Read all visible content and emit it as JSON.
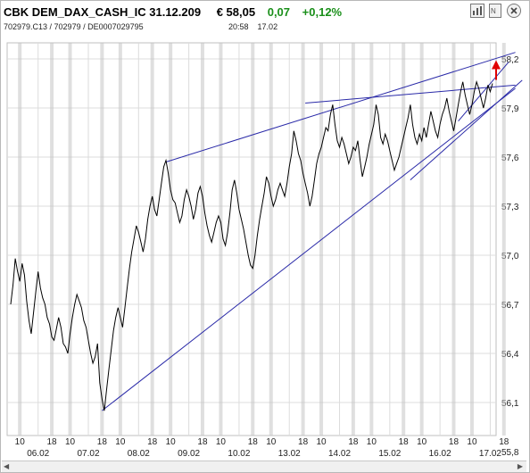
{
  "header": {
    "instrument": "CBK DEM_DAX_CASH_IC 31.12.209",
    "price": "€ 58,05",
    "change": "0,07",
    "change_pct": "+0,12%",
    "codes": "702979.C13  /  702979  /  DE0007029795",
    "time": "20:58",
    "date": "17.02"
  },
  "colors": {
    "price_line": "#000000",
    "trendline": "#2a2aa8",
    "grid": "#dcdcdc",
    "session_line": "#c4c4c4",
    "arrow": "#e00000",
    "positive": "#1a8f1a"
  },
  "icons": [
    "chart-settings-icon",
    "close-icon"
  ],
  "chart_data": {
    "type": "line",
    "y_ticks": [
      "58,2",
      "57,9",
      "57,6",
      "57,3",
      "57,0",
      "56,7",
      "56,4",
      "56,1",
      "55,8"
    ],
    "ylim": [
      55.8,
      58.2
    ],
    "x_labels": [
      {
        "text": "10",
        "i": 4
      },
      {
        "text": "06.02",
        "i": 12
      },
      {
        "text": "18",
        "i": 18
      },
      {
        "text": "10",
        "i": 26
      },
      {
        "text": "07.02",
        "i": 34
      },
      {
        "text": "18",
        "i": 40
      },
      {
        "text": "10",
        "i": 48
      },
      {
        "text": "08.02",
        "i": 56
      },
      {
        "text": "18",
        "i": 62
      },
      {
        "text": "10",
        "i": 70
      },
      {
        "text": "09.02",
        "i": 78
      },
      {
        "text": "18",
        "i": 84
      },
      {
        "text": "10",
        "i": 92
      },
      {
        "text": "10.02",
        "i": 100
      },
      {
        "text": "18",
        "i": 106
      },
      {
        "text": "10",
        "i": 114
      },
      {
        "text": "13.02",
        "i": 122
      },
      {
        "text": "18",
        "i": 128
      },
      {
        "text": "10",
        "i": 136
      },
      {
        "text": "14.02",
        "i": 144
      },
      {
        "text": "18",
        "i": 150
      },
      {
        "text": "10",
        "i": 158
      },
      {
        "text": "15.02",
        "i": 166
      },
      {
        "text": "18",
        "i": 172
      },
      {
        "text": "10",
        "i": 180
      },
      {
        "text": "16.02",
        "i": 188
      },
      {
        "text": "18",
        "i": 194
      },
      {
        "text": "10",
        "i": 202
      },
      {
        "text": "17.02",
        "i": 210
      },
      {
        "text": "18",
        "i": 216
      }
    ],
    "price_series": [
      56.7,
      56.82,
      56.98,
      56.9,
      56.84,
      56.95,
      56.88,
      56.72,
      56.6,
      56.52,
      56.65,
      56.78,
      56.9,
      56.8,
      56.74,
      56.7,
      56.62,
      56.58,
      56.5,
      56.48,
      56.55,
      56.62,
      56.56,
      56.46,
      56.44,
      56.4,
      56.52,
      56.62,
      56.7,
      56.76,
      56.72,
      56.68,
      56.6,
      56.56,
      56.48,
      56.4,
      56.34,
      56.38,
      56.46,
      56.22,
      56.12,
      56.05,
      56.18,
      56.3,
      56.42,
      56.54,
      56.62,
      56.68,
      56.62,
      56.56,
      56.68,
      56.8,
      56.92,
      57.02,
      57.1,
      57.18,
      57.14,
      57.08,
      57.02,
      57.1,
      57.22,
      57.3,
      57.36,
      57.28,
      57.24,
      57.34,
      57.44,
      57.54,
      57.58,
      57.5,
      57.4,
      57.34,
      57.32,
      57.26,
      57.2,
      57.24,
      57.34,
      57.4,
      57.36,
      57.3,
      57.22,
      57.28,
      57.38,
      57.42,
      57.36,
      57.26,
      57.18,
      57.12,
      57.08,
      57.14,
      57.2,
      57.24,
      57.2,
      57.1,
      57.06,
      57.14,
      57.26,
      57.4,
      57.46,
      57.38,
      57.28,
      57.22,
      57.16,
      57.08,
      57.0,
      56.94,
      56.92,
      57.0,
      57.12,
      57.22,
      57.3,
      57.38,
      57.48,
      57.44,
      57.36,
      57.3,
      57.34,
      57.4,
      57.44,
      57.4,
      57.36,
      57.44,
      57.54,
      57.62,
      57.76,
      57.7,
      57.62,
      57.58,
      57.5,
      57.44,
      57.38,
      57.3,
      57.36,
      57.46,
      57.56,
      57.62,
      57.66,
      57.72,
      57.78,
      57.76,
      57.86,
      57.92,
      57.8,
      57.7,
      57.66,
      57.72,
      57.68,
      57.62,
      57.56,
      57.6,
      57.66,
      57.64,
      57.7,
      57.58,
      57.48,
      57.54,
      57.6,
      57.68,
      57.74,
      57.8,
      57.92,
      57.86,
      57.72,
      57.68,
      57.74,
      57.7,
      57.64,
      57.58,
      57.52,
      57.56,
      57.6,
      57.66,
      57.72,
      57.78,
      57.84,
      57.92,
      57.8,
      57.72,
      57.68,
      57.74,
      57.7,
      57.78,
      57.72,
      57.8,
      57.88,
      57.82,
      57.76,
      57.72,
      57.8,
      57.86,
      57.9,
      57.96,
      57.88,
      57.82,
      57.76,
      57.84,
      57.92,
      58.0,
      58.06,
      57.98,
      57.92,
      57.86,
      57.92,
      58.0,
      58.06,
      58.02,
      57.96,
      57.9,
      57.96,
      58.04,
      58.0,
      58.05
    ],
    "trendlines": [
      {
        "from": [
          40,
          56.05
        ],
        "to": [
          221,
          58.02
        ]
      },
      {
        "from": [
          68,
          57.57
        ],
        "to": [
          221,
          58.24
        ]
      },
      {
        "from": [
          129,
          57.93
        ],
        "to": [
          221,
          58.04
        ]
      },
      {
        "from": [
          175,
          57.46
        ],
        "to": [
          224,
          58.07
        ]
      },
      {
        "from": [
          196,
          57.82
        ],
        "to": [
          218,
          58.18
        ]
      }
    ]
  }
}
